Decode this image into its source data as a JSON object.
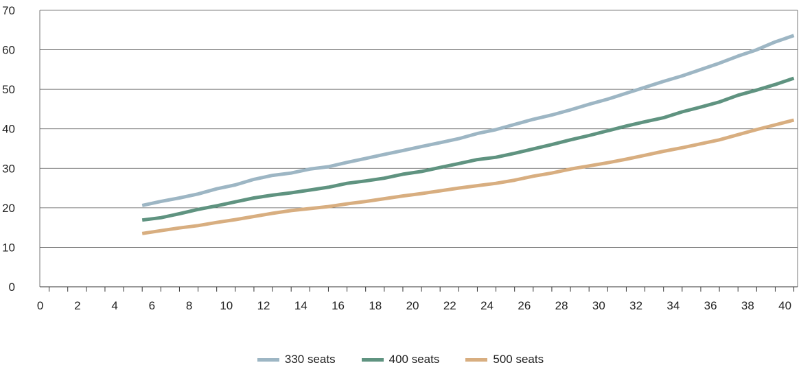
{
  "chart_data": {
    "type": "line",
    "title": "",
    "xlabel": "",
    "ylabel": "",
    "xlim": [
      -0.5,
      40.2
    ],
    "ylim": [
      0,
      70
    ],
    "x_ticks": [
      0,
      2,
      4,
      6,
      8,
      10,
      12,
      14,
      16,
      18,
      20,
      22,
      24,
      26,
      28,
      30,
      32,
      34,
      36,
      38,
      40
    ],
    "y_ticks": [
      0,
      10,
      20,
      30,
      40,
      50,
      60,
      70
    ],
    "grid": "horizontal",
    "legend_position": "bottom",
    "x": [
      5,
      6,
      7,
      8,
      9,
      10,
      11,
      12,
      13,
      14,
      15,
      16,
      17,
      18,
      19,
      20,
      21,
      22,
      23,
      24,
      25,
      26,
      27,
      28,
      29,
      30,
      31,
      32,
      33,
      34,
      35,
      36,
      37,
      38,
      39,
      40
    ],
    "series": [
      {
        "name": "330 seats",
        "color": "#9db6c4",
        "values": [
          20.6,
          21.6,
          22.5,
          23.5,
          24.8,
          25.8,
          27.2,
          28.2,
          28.8,
          29.8,
          30.4,
          31.5,
          32.5,
          33.5,
          34.5,
          35.5,
          36.5,
          37.5,
          38.8,
          39.8,
          41.1,
          42.4,
          43.5,
          44.8,
          46.2,
          47.5,
          49.0,
          50.5,
          52.0,
          53.4,
          55.0,
          56.6,
          58.4,
          60.0,
          62.0,
          63.6
        ]
      },
      {
        "name": "400 seats",
        "color": "#5f9380",
        "values": [
          16.9,
          17.5,
          18.5,
          19.6,
          20.5,
          21.5,
          22.5,
          23.2,
          23.8,
          24.5,
          25.2,
          26.2,
          26.8,
          27.5,
          28.5,
          29.2,
          30.2,
          31.2,
          32.2,
          32.8,
          33.8,
          34.9,
          36.0,
          37.2,
          38.3,
          39.5,
          40.7,
          41.8,
          42.8,
          44.3,
          45.5,
          46.8,
          48.5,
          49.8,
          51.2,
          52.8
        ]
      },
      {
        "name": "500 seats",
        "color": "#d8ae80",
        "values": [
          13.5,
          14.2,
          14.9,
          15.5,
          16.3,
          17.0,
          17.8,
          18.6,
          19.3,
          19.8,
          20.3,
          21.0,
          21.6,
          22.3,
          23.0,
          23.6,
          24.3,
          25.0,
          25.6,
          26.2,
          27.0,
          28.0,
          28.8,
          29.8,
          30.6,
          31.4,
          32.3,
          33.3,
          34.3,
          35.2,
          36.2,
          37.2,
          38.5,
          39.8,
          41.0,
          42.2
        ]
      }
    ]
  }
}
